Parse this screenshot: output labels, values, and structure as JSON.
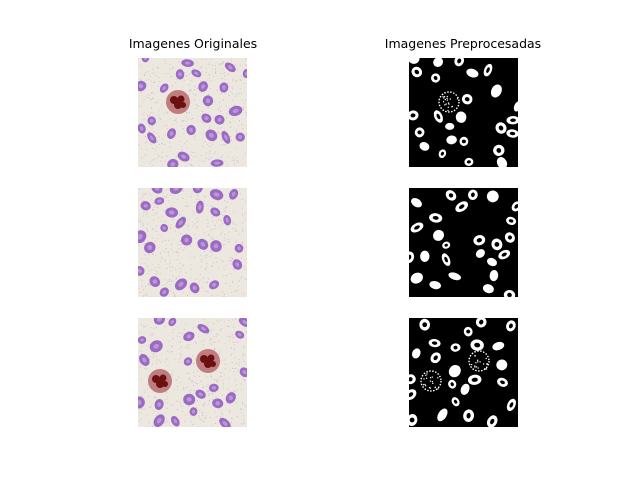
{
  "figure": {
    "left_title": "Imagenes Originales",
    "right_title": "Imagenes Preprocesadas"
  },
  "panels": {
    "original": {
      "count": 3,
      "content": "blood smear micrograph: purple red blood cells on noisy pale background",
      "colors": {
        "background": "#ece7df",
        "cell": "#9a6ac4",
        "cell_center": "#c8a9de",
        "nucleus": "#6b1010",
        "nucleus_halo": "#b86a70"
      }
    },
    "preprocessed": {
      "count": 3,
      "content": "binary mask: white cell outlines on black background",
      "colors": {
        "background": "#000000",
        "cell": "#ffffff"
      }
    }
  }
}
